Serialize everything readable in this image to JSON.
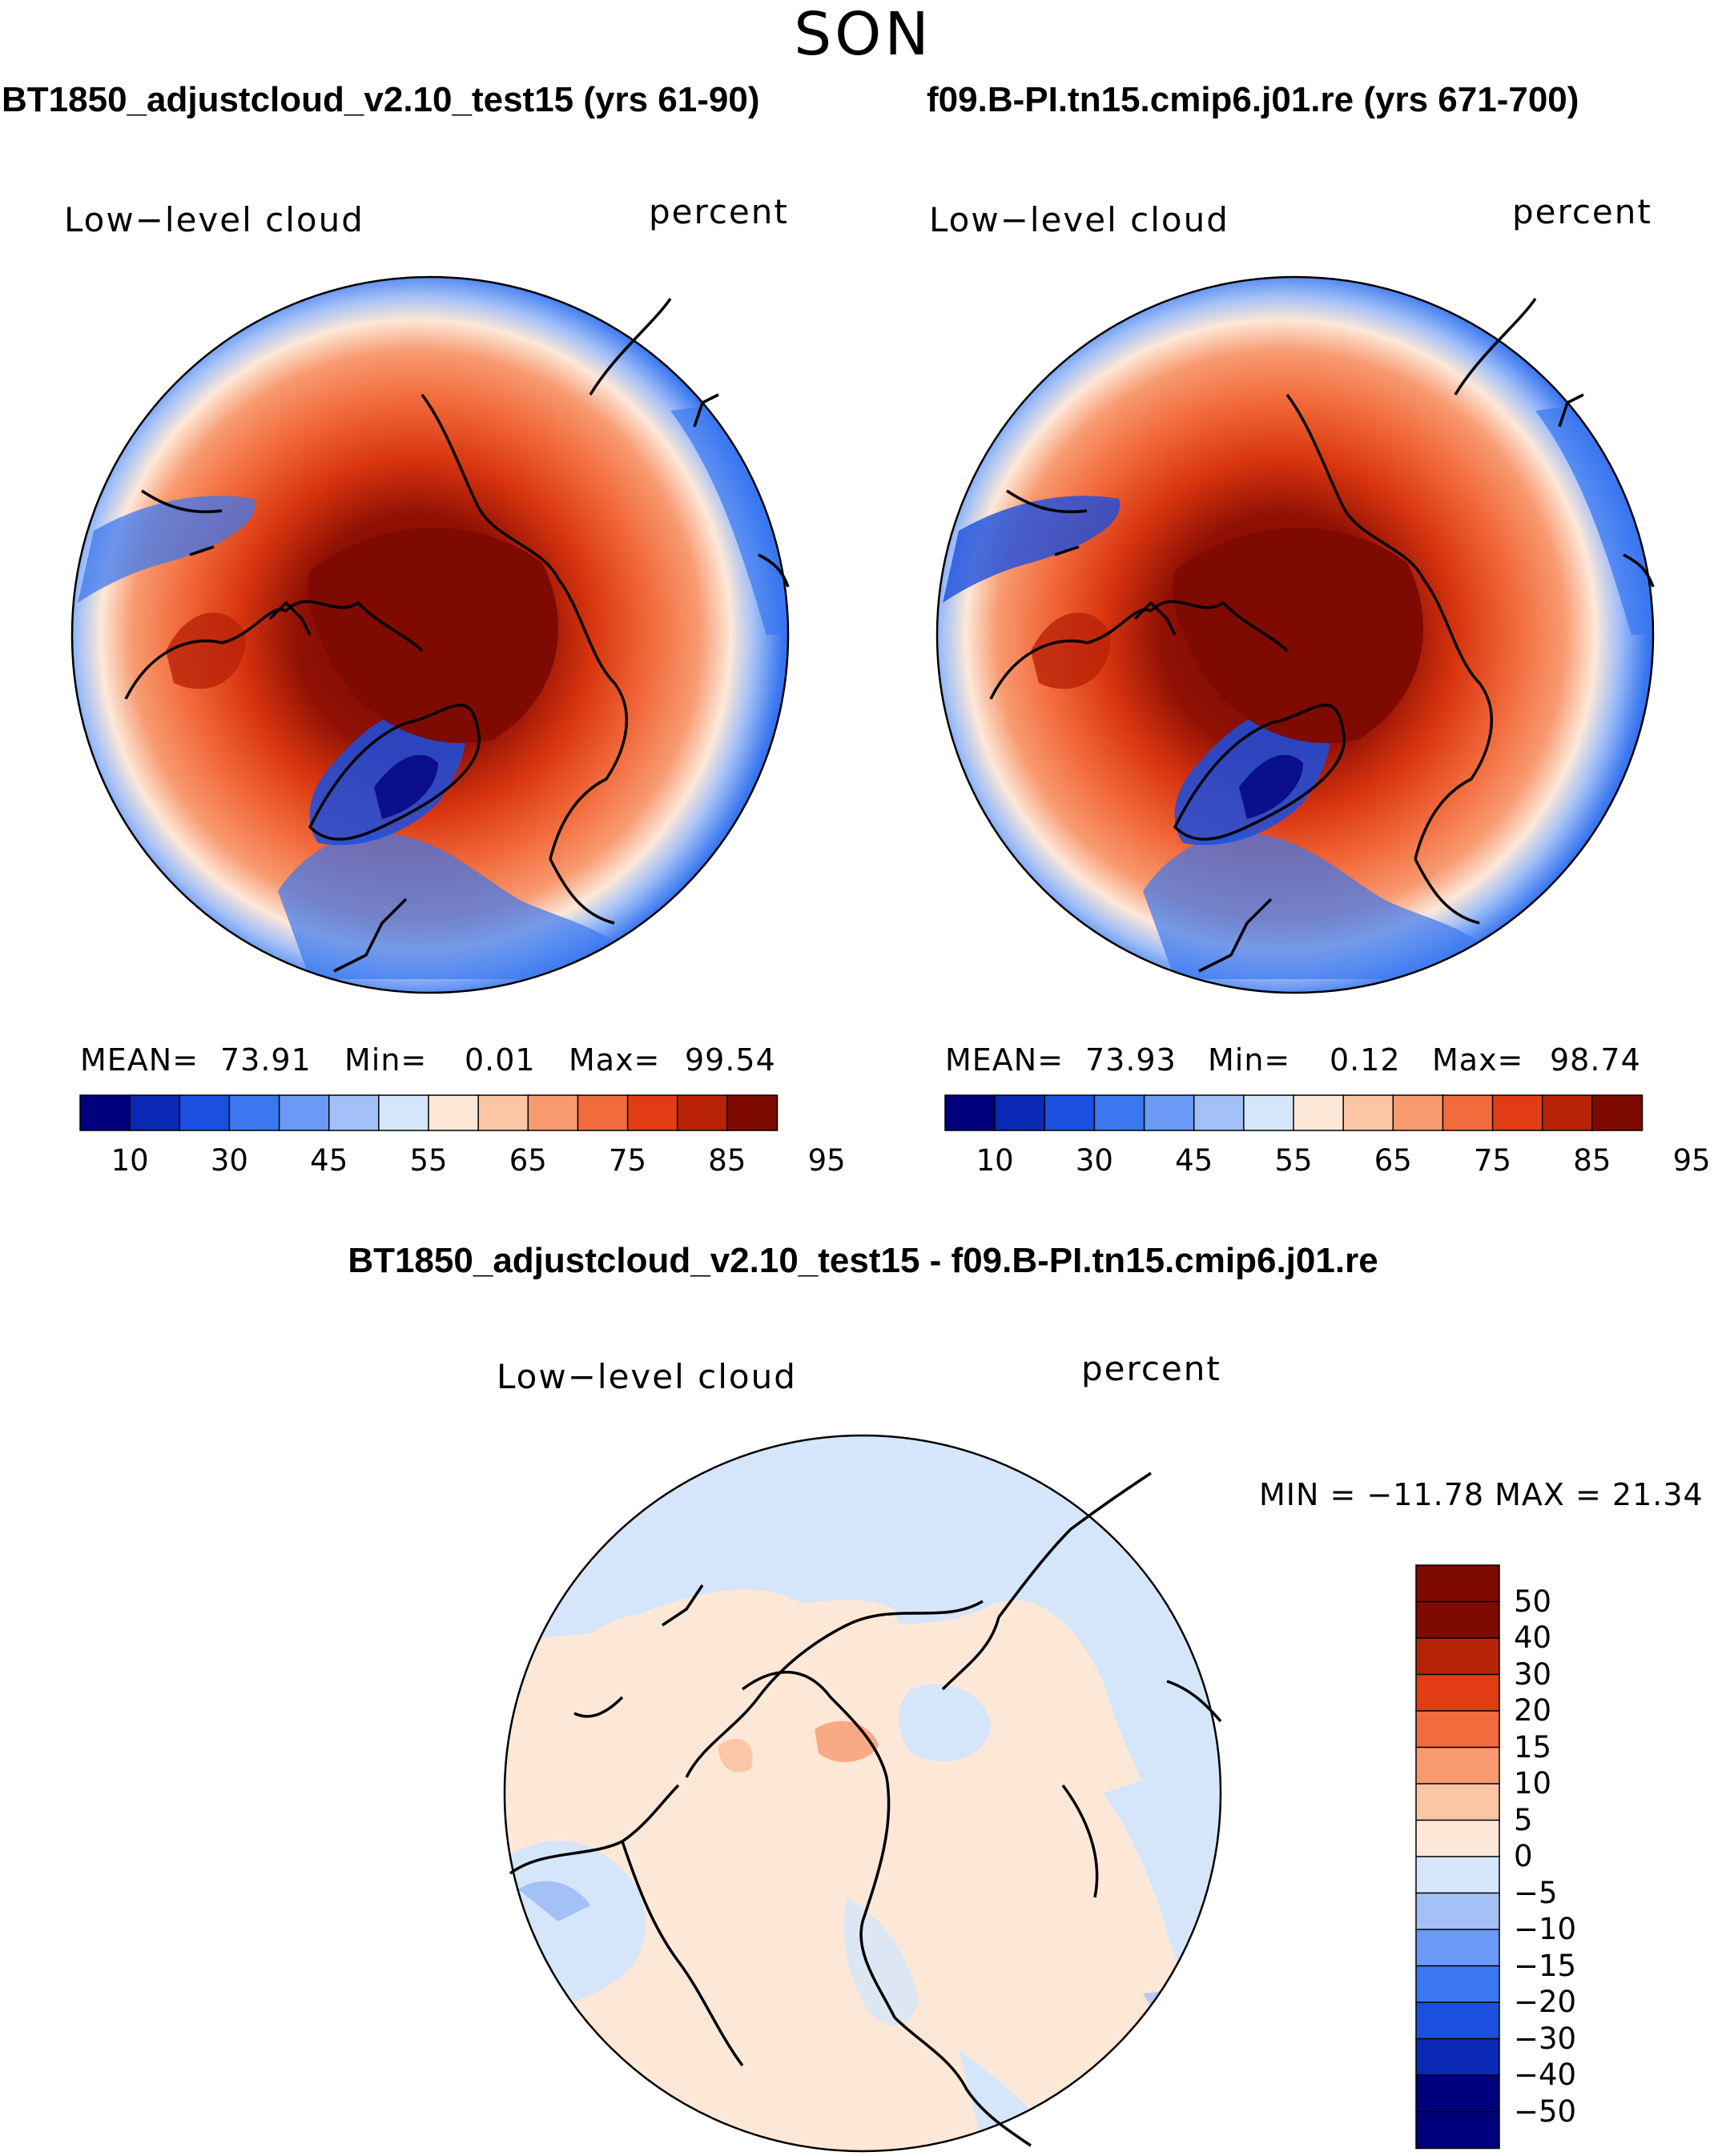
{
  "figure": {
    "season": "SON",
    "diff_title": "BT1850_adjustcloud_v2.10_test15 - f09.B-PI.tn15.cmip6.j01.re"
  },
  "panels": {
    "left": {
      "title": "BT1850_adjustcloud_v2.10_test15 (yrs 61-90)",
      "variable": "Low−level cloud",
      "units": "percent",
      "mean_label": "MEAN=",
      "mean": "73.91",
      "min_label": "Min=",
      "min": "0.01",
      "max_label": "Max=",
      "max": "99.54"
    },
    "right": {
      "title": "f09.B-PI.tn15.cmip6.j01.re (yrs 671-700)",
      "variable": "Low−level cloud",
      "units": "percent",
      "mean_label": "MEAN=",
      "mean": "73.93",
      "min_label": "Min=",
      "min": "0.12",
      "max_label": "Max=",
      "max": "98.74"
    },
    "diff": {
      "variable": "Low−level cloud",
      "units": "percent",
      "minmax": "MIN = −11.78 MAX =  21.34"
    }
  },
  "colorbar_abs": {
    "colors": [
      "#00007d",
      "#0a29b5",
      "#1a4fe0",
      "#3b78f0",
      "#6a9af5",
      "#a3c0f7",
      "#d5e6fb",
      "#fde8d8",
      "#fbc6a6",
      "#f89a70",
      "#f26b3c",
      "#e03d14",
      "#b82206",
      "#7e0a02"
    ],
    "labels": [
      "10",
      "30",
      "45",
      "55",
      "65",
      "75",
      "85",
      "95"
    ]
  },
  "colorbar_diff": {
    "colors": [
      "#7e0a02",
      "#b82206",
      "#e03d14",
      "#f26b3c",
      "#f89a70",
      "#fbc6a6",
      "#fde8d8",
      "#d5e6fb",
      "#a3c0f7",
      "#6a9af5",
      "#3b78f0",
      "#1a4fe0",
      "#0a29b5",
      "#00007d"
    ],
    "labels": [
      "50",
      "40",
      "30",
      "20",
      "15",
      "10",
      "5",
      "0",
      "−5",
      "−10",
      "−15",
      "−20",
      "−30",
      "−40",
      "−50"
    ]
  }
}
